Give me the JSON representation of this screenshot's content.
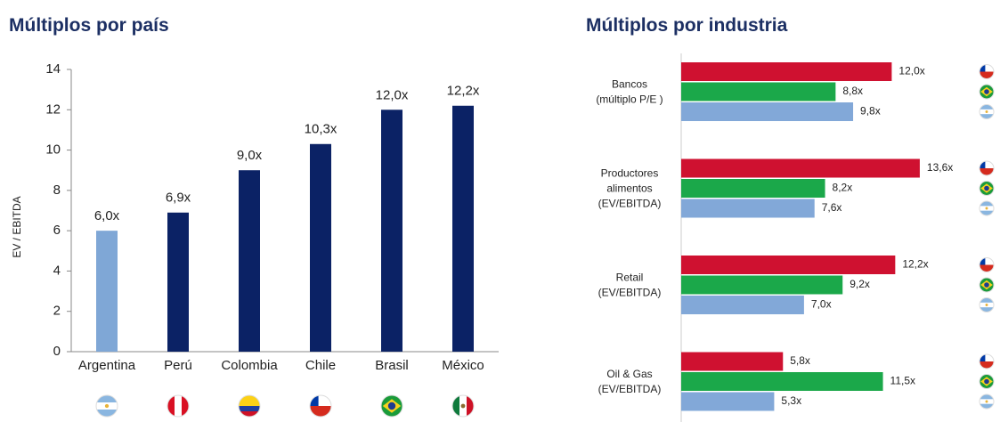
{
  "chart_data": [
    {
      "type": "bar",
      "title": "Múltiplos por país",
      "y_label": "EV / EBITDA",
      "categories": [
        "Argentina",
        "Perú",
        "Colombia",
        "Chile",
        "Brasil",
        "México"
      ],
      "values": [
        6.0,
        6.9,
        9.0,
        10.3,
        12.0,
        12.2
      ],
      "value_labels": [
        "6,0x",
        "6,9x",
        "9,0x",
        "10,3x",
        "12,0x",
        "12,2x"
      ],
      "colors": [
        "#7fa7d6",
        "#0b2265",
        "#0b2265",
        "#0b2265",
        "#0b2265",
        "#0b2265"
      ],
      "ylim": [
        0,
        14
      ],
      "yticks": [
        0,
        2,
        4,
        6,
        8,
        10,
        12,
        14
      ]
    },
    {
      "type": "hbar",
      "title": "Múltiplos por industria",
      "categories": [
        [
          "Bancos",
          "(múltiplo P/E )"
        ],
        [
          "Productores",
          "alimentos",
          "(EV/EBITDA)"
        ],
        [
          "Retail",
          "(EV/EBITDA)"
        ],
        [
          "Oil & Gas",
          "(EV/EBITDA)"
        ]
      ],
      "series": [
        {
          "color": "#cf1130",
          "values": [
            12.0,
            13.6,
            12.2,
            5.8
          ],
          "value_labels": [
            "12,0x",
            "13,6x",
            "12,2x",
            "5,8x"
          ]
        },
        {
          "color": "#1ba84a",
          "values": [
            8.8,
            8.2,
            9.2,
            11.5
          ],
          "value_labels": [
            "8,8x",
            "8,2x",
            "9,2x",
            "11,5x"
          ]
        },
        {
          "color": "#82a8d8",
          "values": [
            9.8,
            7.6,
            7.0,
            5.3
          ],
          "value_labels": [
            "9,8x",
            "7,6x",
            "7,0x",
            "5,3x"
          ]
        }
      ]
    }
  ]
}
